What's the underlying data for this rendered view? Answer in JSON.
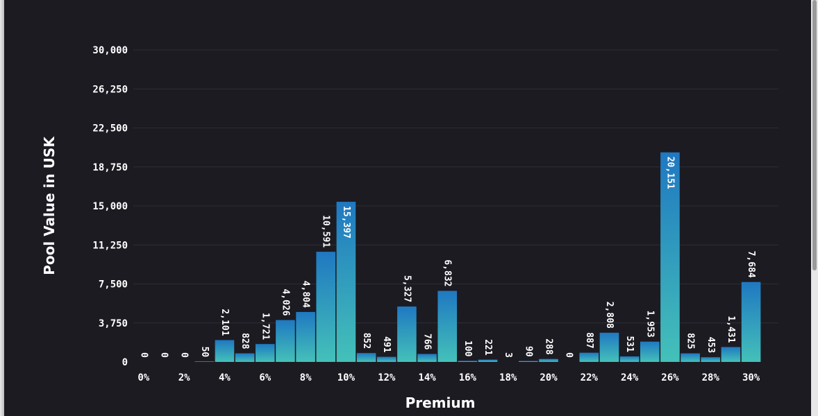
{
  "chart_data": {
    "type": "bar",
    "title": "",
    "xlabel": "Premium",
    "ylabel": "Pool Value in USK",
    "ylim": [
      0,
      30000
    ],
    "yticks": [
      "0",
      "3,750",
      "7,500",
      "11,250",
      "15,000",
      "18,750",
      "22,500",
      "26,250",
      "30,000"
    ],
    "ytick_values": [
      0,
      3750,
      7500,
      11250,
      15000,
      18750,
      22500,
      26250,
      30000
    ],
    "xticks": [
      "0%",
      "2%",
      "4%",
      "6%",
      "8%",
      "10%",
      "12%",
      "14%",
      "16%",
      "18%",
      "20%",
      "22%",
      "24%",
      "26%",
      "28%",
      "30%"
    ],
    "categories": [
      "0%",
      "1%",
      "2%",
      "3%",
      "4%",
      "5%",
      "6%",
      "7%",
      "8%",
      "9%",
      "10%",
      "11%",
      "12%",
      "13%",
      "14%",
      "15%",
      "16%",
      "17%",
      "18%",
      "19%",
      "20%",
      "21%",
      "22%",
      "23%",
      "24%",
      "25%",
      "26%",
      "27%",
      "28%",
      "29%",
      "30%"
    ],
    "values": [
      0,
      0,
      0,
      50,
      2101,
      828,
      1721,
      4026,
      4804,
      10591,
      15397,
      852,
      491,
      5327,
      766,
      6832,
      100,
      221,
      3,
      90,
      288,
      0,
      887,
      2808,
      531,
      1953,
      20151,
      825,
      453,
      1431,
      7684
    ],
    "value_labels": [
      "0",
      "0",
      "0",
      "50",
      "2,101",
      "828",
      "1,721",
      "4,026",
      "4,804",
      "10,591",
      "15,397",
      "852",
      "491",
      "5,327",
      "766",
      "6,832",
      "100",
      "221",
      "3",
      "90",
      "288",
      "0",
      "887",
      "2,808",
      "531",
      "1,953",
      "20,151",
      "825",
      "453",
      "1,431",
      "7,684"
    ],
    "grid": true,
    "legend": "none",
    "colors": {
      "background": "#1c1b22",
      "grid": "#2e2d36",
      "bar_top": "#1f78c1",
      "bar_bottom": "#44c1b9",
      "text": "#ffffff"
    }
  }
}
